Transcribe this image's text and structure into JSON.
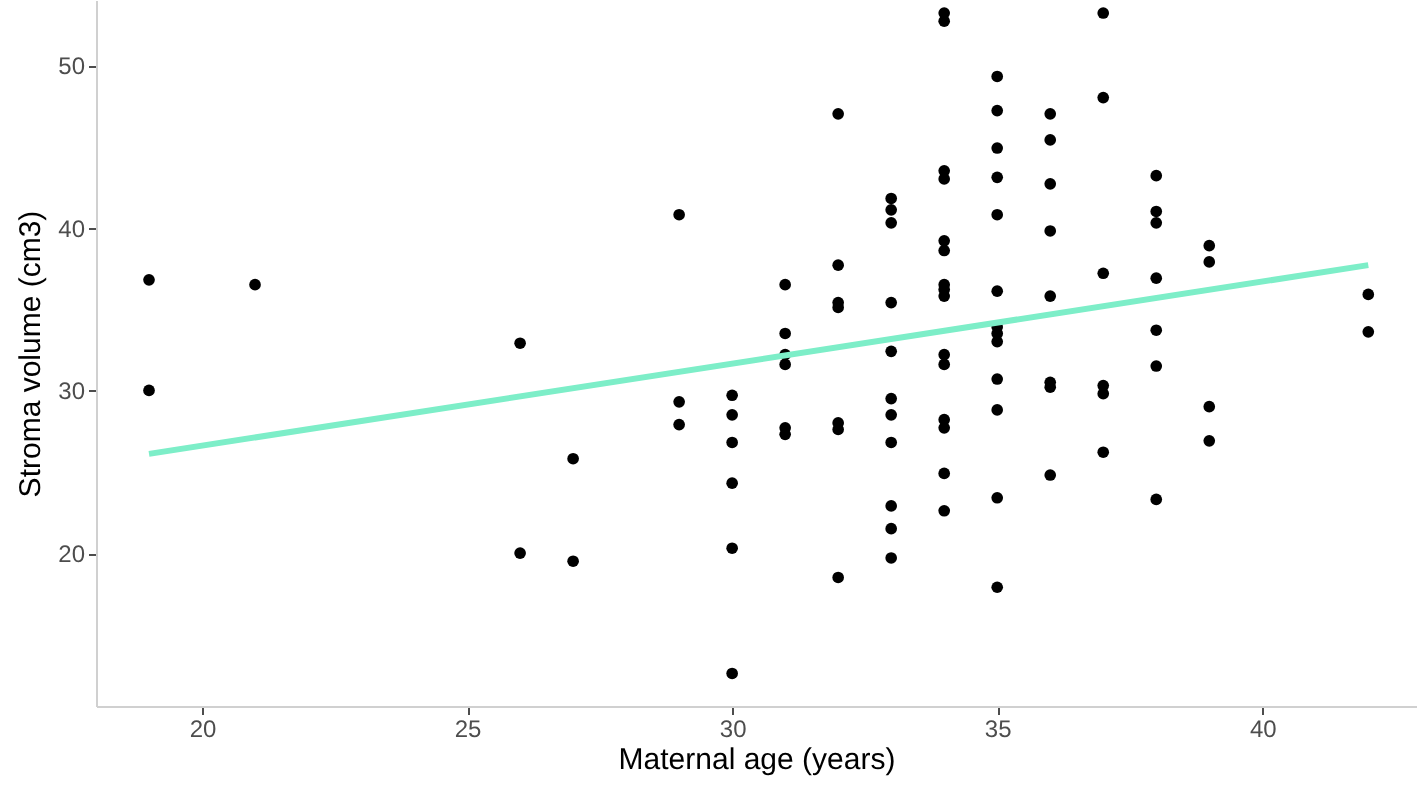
{
  "chart_data": {
    "type": "scatter",
    "xlabel": "Maternal age (years)",
    "ylabel": "Stroma volume (cm3)",
    "xlim": [
      18,
      42.9
    ],
    "ylim": [
      10.6,
      54.0
    ],
    "xticks": [
      20,
      25,
      30,
      35,
      40
    ],
    "yticks": [
      20,
      30,
      40,
      50
    ],
    "grid": false,
    "marker": "circle",
    "series": [
      {
        "color": "#000000",
        "x": [
          19,
          19,
          21,
          26,
          26,
          27,
          27,
          29,
          29,
          29,
          30,
          30,
          30,
          30,
          30,
          30,
          31,
          31,
          31,
          31,
          31,
          31,
          32,
          32,
          32,
          32,
          32,
          32,
          32,
          33,
          33,
          33,
          33,
          33,
          33,
          33,
          33,
          33,
          33,
          33,
          34,
          34,
          34,
          34,
          34,
          34,
          34,
          34,
          34,
          34,
          34,
          34,
          34,
          34,
          34,
          35,
          35,
          35,
          35,
          35,
          35,
          35,
          35,
          35,
          35,
          35,
          35,
          35,
          36,
          36,
          36,
          36,
          36,
          36,
          36,
          36,
          37,
          37,
          37,
          37,
          37,
          37,
          38,
          38,
          38,
          38,
          38,
          38,
          38,
          39,
          39,
          39,
          39,
          42,
          42
        ],
        "values": [
          36.8,
          30.0,
          36.5,
          32.9,
          20.0,
          25.8,
          19.5,
          40.8,
          29.3,
          27.9,
          29.7,
          28.5,
          26.8,
          24.3,
          20.3,
          12.6,
          36.5,
          33.5,
          32.2,
          31.6,
          27.7,
          27.3,
          47.0,
          37.7,
          35.4,
          35.1,
          28.0,
          27.6,
          18.5,
          41.8,
          41.1,
          40.3,
          35.4,
          32.4,
          29.5,
          28.5,
          26.8,
          22.9,
          21.5,
          19.7,
          53.2,
          52.7,
          43.5,
          43.0,
          39.2,
          38.6,
          36.5,
          36.2,
          35.8,
          32.2,
          31.6,
          28.2,
          27.7,
          24.9,
          22.6,
          49.3,
          47.2,
          44.9,
          43.1,
          40.8,
          36.1,
          33.9,
          33.5,
          33.0,
          30.7,
          28.8,
          23.4,
          17.9,
          47.0,
          45.4,
          42.7,
          39.8,
          35.8,
          30.5,
          30.2,
          24.8,
          53.2,
          48.0,
          37.2,
          30.3,
          29.8,
          26.2,
          43.2,
          41.0,
          40.3,
          36.9,
          33.7,
          31.5,
          23.3,
          38.9,
          37.9,
          29.0,
          26.9,
          35.9,
          33.6
        ]
      },
      {
        "type": "line",
        "marker": "none",
        "color": "#7deec8",
        "x": [
          19,
          42
        ],
        "values": [
          26.1,
          37.7
        ]
      }
    ]
  }
}
